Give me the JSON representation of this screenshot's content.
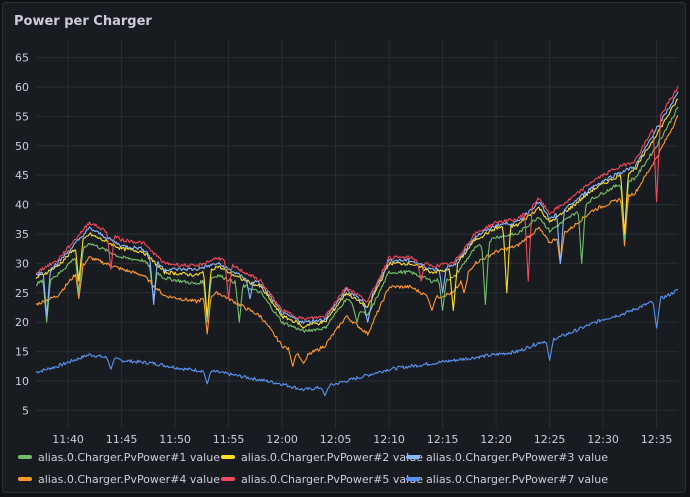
{
  "panel": {
    "title": "Power per Charger"
  },
  "chart_data": {
    "type": "line",
    "title": "Power per Charger",
    "xlabel": "",
    "ylabel": "",
    "ylim": [
      2,
      68
    ],
    "y_ticks": [
      5,
      10,
      15,
      20,
      25,
      30,
      35,
      40,
      45,
      50,
      55,
      60,
      65
    ],
    "xlim": [
      "11:37",
      "12:37"
    ],
    "x_ticks": [
      "11:40",
      "11:45",
      "11:50",
      "11:55",
      "12:00",
      "12:05",
      "12:10",
      "12:15",
      "12:20",
      "12:25",
      "12:30",
      "12:35"
    ],
    "grid": true,
    "legend_position": "bottom",
    "series": [
      {
        "name": "alias.0.Charger.PvPower#1 value",
        "color": "#73bf69",
        "x": [
          "11:37",
          "11:39",
          "11:42",
          "11:45",
          "11:47",
          "11:49",
          "11:52",
          "11:54",
          "11:56",
          "11:58",
          "12:00",
          "12:02",
          "12:04",
          "12:06",
          "12:08",
          "12:10",
          "12:12",
          "12:14",
          "12:16",
          "12:18",
          "12:20",
          "12:22",
          "12:24",
          "12:25",
          "12:27",
          "12:29",
          "12:31",
          "12:33",
          "12:35",
          "12:37"
        ],
        "y": [
          26.5,
          28,
          33.5,
          31,
          30.5,
          27.5,
          26.5,
          28,
          26.5,
          25,
          20,
          18.5,
          19,
          24,
          21,
          28.5,
          28.5,
          27,
          27.5,
          32.5,
          34.5,
          35,
          38,
          35.5,
          38,
          41,
          43,
          44.5,
          50,
          56.5
        ],
        "dips": [
          [
            "11:38",
            20
          ],
          [
            "11:41",
            25
          ],
          [
            "11:48",
            24
          ],
          [
            "11:53",
            20
          ],
          [
            "11:56",
            20
          ],
          [
            "12:02",
            19
          ],
          [
            "12:07",
            20
          ],
          [
            "12:15",
            22
          ],
          [
            "12:19",
            23
          ],
          [
            "12:28",
            30
          ],
          [
            "12:32",
            34
          ]
        ]
      },
      {
        "name": "alias.0.Charger.PvPower#2 value",
        "color": "#fade2a",
        "x": [
          "11:37",
          "11:39",
          "11:42",
          "11:45",
          "11:47",
          "11:49",
          "11:52",
          "11:54",
          "11:56",
          "11:58",
          "12:00",
          "12:02",
          "12:04",
          "12:06",
          "12:08",
          "12:10",
          "12:12",
          "12:14",
          "12:16",
          "12:18",
          "12:20",
          "12:22",
          "12:24",
          "12:25",
          "12:27",
          "12:29",
          "12:31",
          "12:33",
          "12:35",
          "12:37"
        ],
        "y": [
          27.5,
          29.5,
          35,
          32.5,
          32,
          28.5,
          28,
          29.5,
          27.5,
          26,
          21,
          19.5,
          20,
          25,
          22.5,
          30,
          30,
          28.5,
          29,
          34,
          36,
          36.5,
          39.5,
          37,
          39.5,
          42.5,
          44.5,
          46,
          52,
          58
        ],
        "dips": [
          [
            "11:41",
            27
          ],
          [
            "11:53",
            21
          ],
          [
            "12:02",
            19
          ],
          [
            "12:16",
            22
          ],
          [
            "12:21",
            25
          ],
          [
            "12:32",
            35
          ]
        ]
      },
      {
        "name": "alias.0.Charger.PvPower#3 value",
        "color": "#8ab8ff",
        "x": [
          "11:37",
          "11:39",
          "11:42",
          "11:45",
          "11:47",
          "11:49",
          "11:52",
          "11:54",
          "11:56",
          "11:58",
          "12:00",
          "12:02",
          "12:04",
          "12:06",
          "12:08",
          "12:10",
          "12:12",
          "12:14",
          "12:16",
          "12:18",
          "12:20",
          "12:22",
          "12:24",
          "12:25",
          "12:27",
          "12:29",
          "12:31",
          "12:33",
          "12:35",
          "12:37"
        ],
        "y": [
          28,
          30,
          36,
          33,
          32.5,
          29,
          29,
          30,
          28,
          26.5,
          21.5,
          20,
          20.5,
          25.5,
          23,
          30.5,
          30.5,
          29,
          29.5,
          34.5,
          36.5,
          37,
          40.5,
          37.5,
          40,
          43,
          45,
          46.5,
          53,
          59
        ],
        "dips": [
          [
            "11:38",
            21
          ],
          [
            "11:48",
            23
          ],
          [
            "11:57",
            24
          ],
          [
            "12:08",
            20
          ],
          [
            "12:15",
            25
          ],
          [
            "12:26",
            30
          ],
          [
            "12:35",
            54
          ]
        ]
      },
      {
        "name": "alias.0.Charger.PvPower#4 value",
        "color": "#ff9830",
        "x": [
          "11:37",
          "11:39",
          "11:42",
          "11:45",
          "11:47",
          "11:49",
          "11:52",
          "11:54",
          "11:56",
          "11:58",
          "12:00",
          "12:02",
          "12:04",
          "12:06",
          "12:08",
          "12:10",
          "12:12",
          "12:14",
          "12:16",
          "12:18",
          "12:20",
          "12:22",
          "12:24",
          "12:25",
          "12:27",
          "12:29",
          "12:31",
          "12:33",
          "12:35",
          "12:37"
        ],
        "y": [
          23,
          24.5,
          31,
          29,
          28,
          24.5,
          23.5,
          25,
          23,
          21,
          16,
          14,
          16,
          21,
          18,
          26,
          26,
          24,
          25,
          30,
          32,
          33,
          36,
          33.5,
          36,
          39,
          40.5,
          42,
          48,
          55
        ],
        "dips": [
          [
            "11:41",
            24
          ],
          [
            "11:53",
            18
          ],
          [
            "12:01",
            12.5
          ],
          [
            "12:02",
            13
          ],
          [
            "12:14",
            22
          ],
          [
            "12:17",
            25
          ],
          [
            "12:26",
            30
          ],
          [
            "12:32",
            33
          ]
        ]
      },
      {
        "name": "alias.0.Charger.PvPower#5 value",
        "color": "#f2495c",
        "x": [
          "11:37",
          "11:39",
          "11:42",
          "11:45",
          "11:47",
          "11:49",
          "11:52",
          "11:54",
          "11:56",
          "11:58",
          "12:00",
          "12:02",
          "12:04",
          "12:06",
          "12:08",
          "12:10",
          "12:12",
          "12:14",
          "12:16",
          "12:18",
          "12:20",
          "12:22",
          "12:24",
          "12:25",
          "12:27",
          "12:29",
          "12:31",
          "12:33",
          "12:35",
          "12:37"
        ],
        "y": [
          28.5,
          30.5,
          37,
          34,
          33.5,
          30,
          29.5,
          31,
          29,
          27,
          22,
          20.5,
          21,
          26,
          23.5,
          31,
          31,
          29.5,
          30,
          35,
          37,
          37.5,
          41,
          38.5,
          41,
          44,
          46,
          47.5,
          54,
          60
        ],
        "dips": [
          [
            "11:44",
            29
          ],
          [
            "11:55",
            24
          ],
          [
            "12:13",
            27
          ],
          [
            "12:23",
            27
          ],
          [
            "12:35",
            40.5
          ]
        ]
      },
      {
        "name": "alias.0.Charger.PvPower#7 value",
        "color": "#5794f2",
        "x": [
          "11:37",
          "11:39",
          "11:42",
          "11:45",
          "11:48",
          "11:51",
          "11:54",
          "11:57",
          "12:00",
          "12:02",
          "12:04",
          "12:06",
          "12:08",
          "12:10",
          "12:12",
          "12:14",
          "12:16",
          "12:18",
          "12:20",
          "12:22",
          "12:24",
          "12:26",
          "12:28",
          "12:30",
          "12:32",
          "12:34",
          "12:36",
          "12:37"
        ],
        "y": [
          11.5,
          12.5,
          14.5,
          13.5,
          13,
          12,
          11.5,
          10.5,
          9.5,
          8.5,
          9,
          10,
          11,
          12,
          12.5,
          13,
          13.5,
          14,
          14.5,
          15,
          16.5,
          17.5,
          19,
          20.5,
          21.5,
          23,
          24.5,
          25.5
        ],
        "dips": [
          [
            "11:44",
            12
          ],
          [
            "11:53",
            9.5
          ],
          [
            "12:04",
            7.5
          ],
          [
            "12:25",
            13.5
          ],
          [
            "12:35",
            19
          ]
        ]
      }
    ]
  }
}
